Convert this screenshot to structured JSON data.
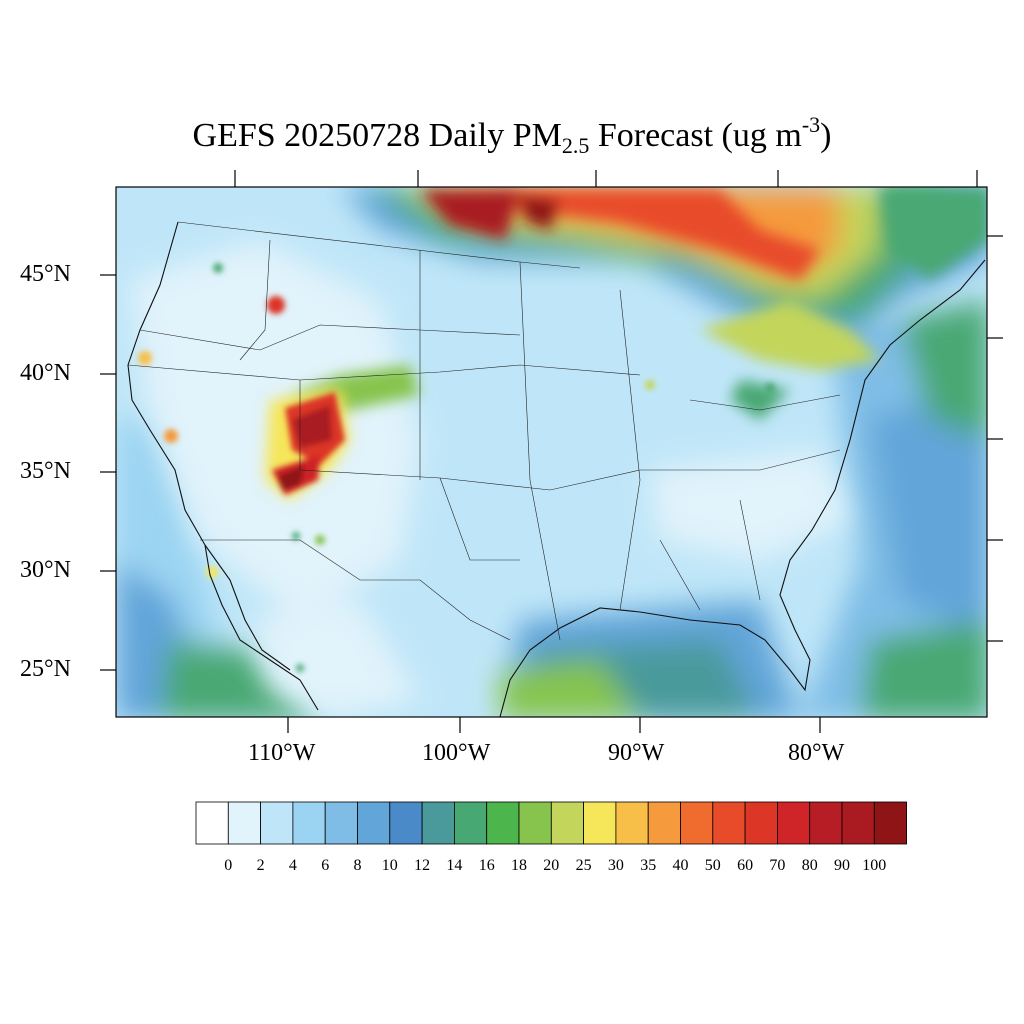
{
  "title": {
    "prefix": "GEFS 20250728 Daily PM",
    "subscript": "2.5",
    "middle": " Forecast (ug m",
    "superscript": "-3",
    "suffix": ")"
  },
  "lat_labels": [
    "45°N",
    "40°N",
    "35°N",
    "30°N",
    "25°N"
  ],
  "lon_labels": [
    "110°W",
    "100°W",
    "90°W",
    "80°W"
  ],
  "colorbar": {
    "labels": [
      "0",
      "2",
      "4",
      "6",
      "8",
      "10",
      "12",
      "14",
      "16",
      "18",
      "20",
      "25",
      "30",
      "35",
      "40",
      "50",
      "60",
      "70",
      "80",
      "90",
      "100"
    ],
    "colors": [
      "#ffffff",
      "#e1f3fb",
      "#bfe6f8",
      "#9bd4f2",
      "#7fbde6",
      "#62a5d9",
      "#4a8ac8",
      "#4a9a9b",
      "#48a873",
      "#4cb54c",
      "#86c44e",
      "#c3d55a",
      "#f6e65a",
      "#f8bf48",
      "#f59a3d",
      "#f06c2e",
      "#e84b2a",
      "#dc3626",
      "#cf2428",
      "#b61d25",
      "#a91b20",
      "#8e1416"
    ]
  }
}
